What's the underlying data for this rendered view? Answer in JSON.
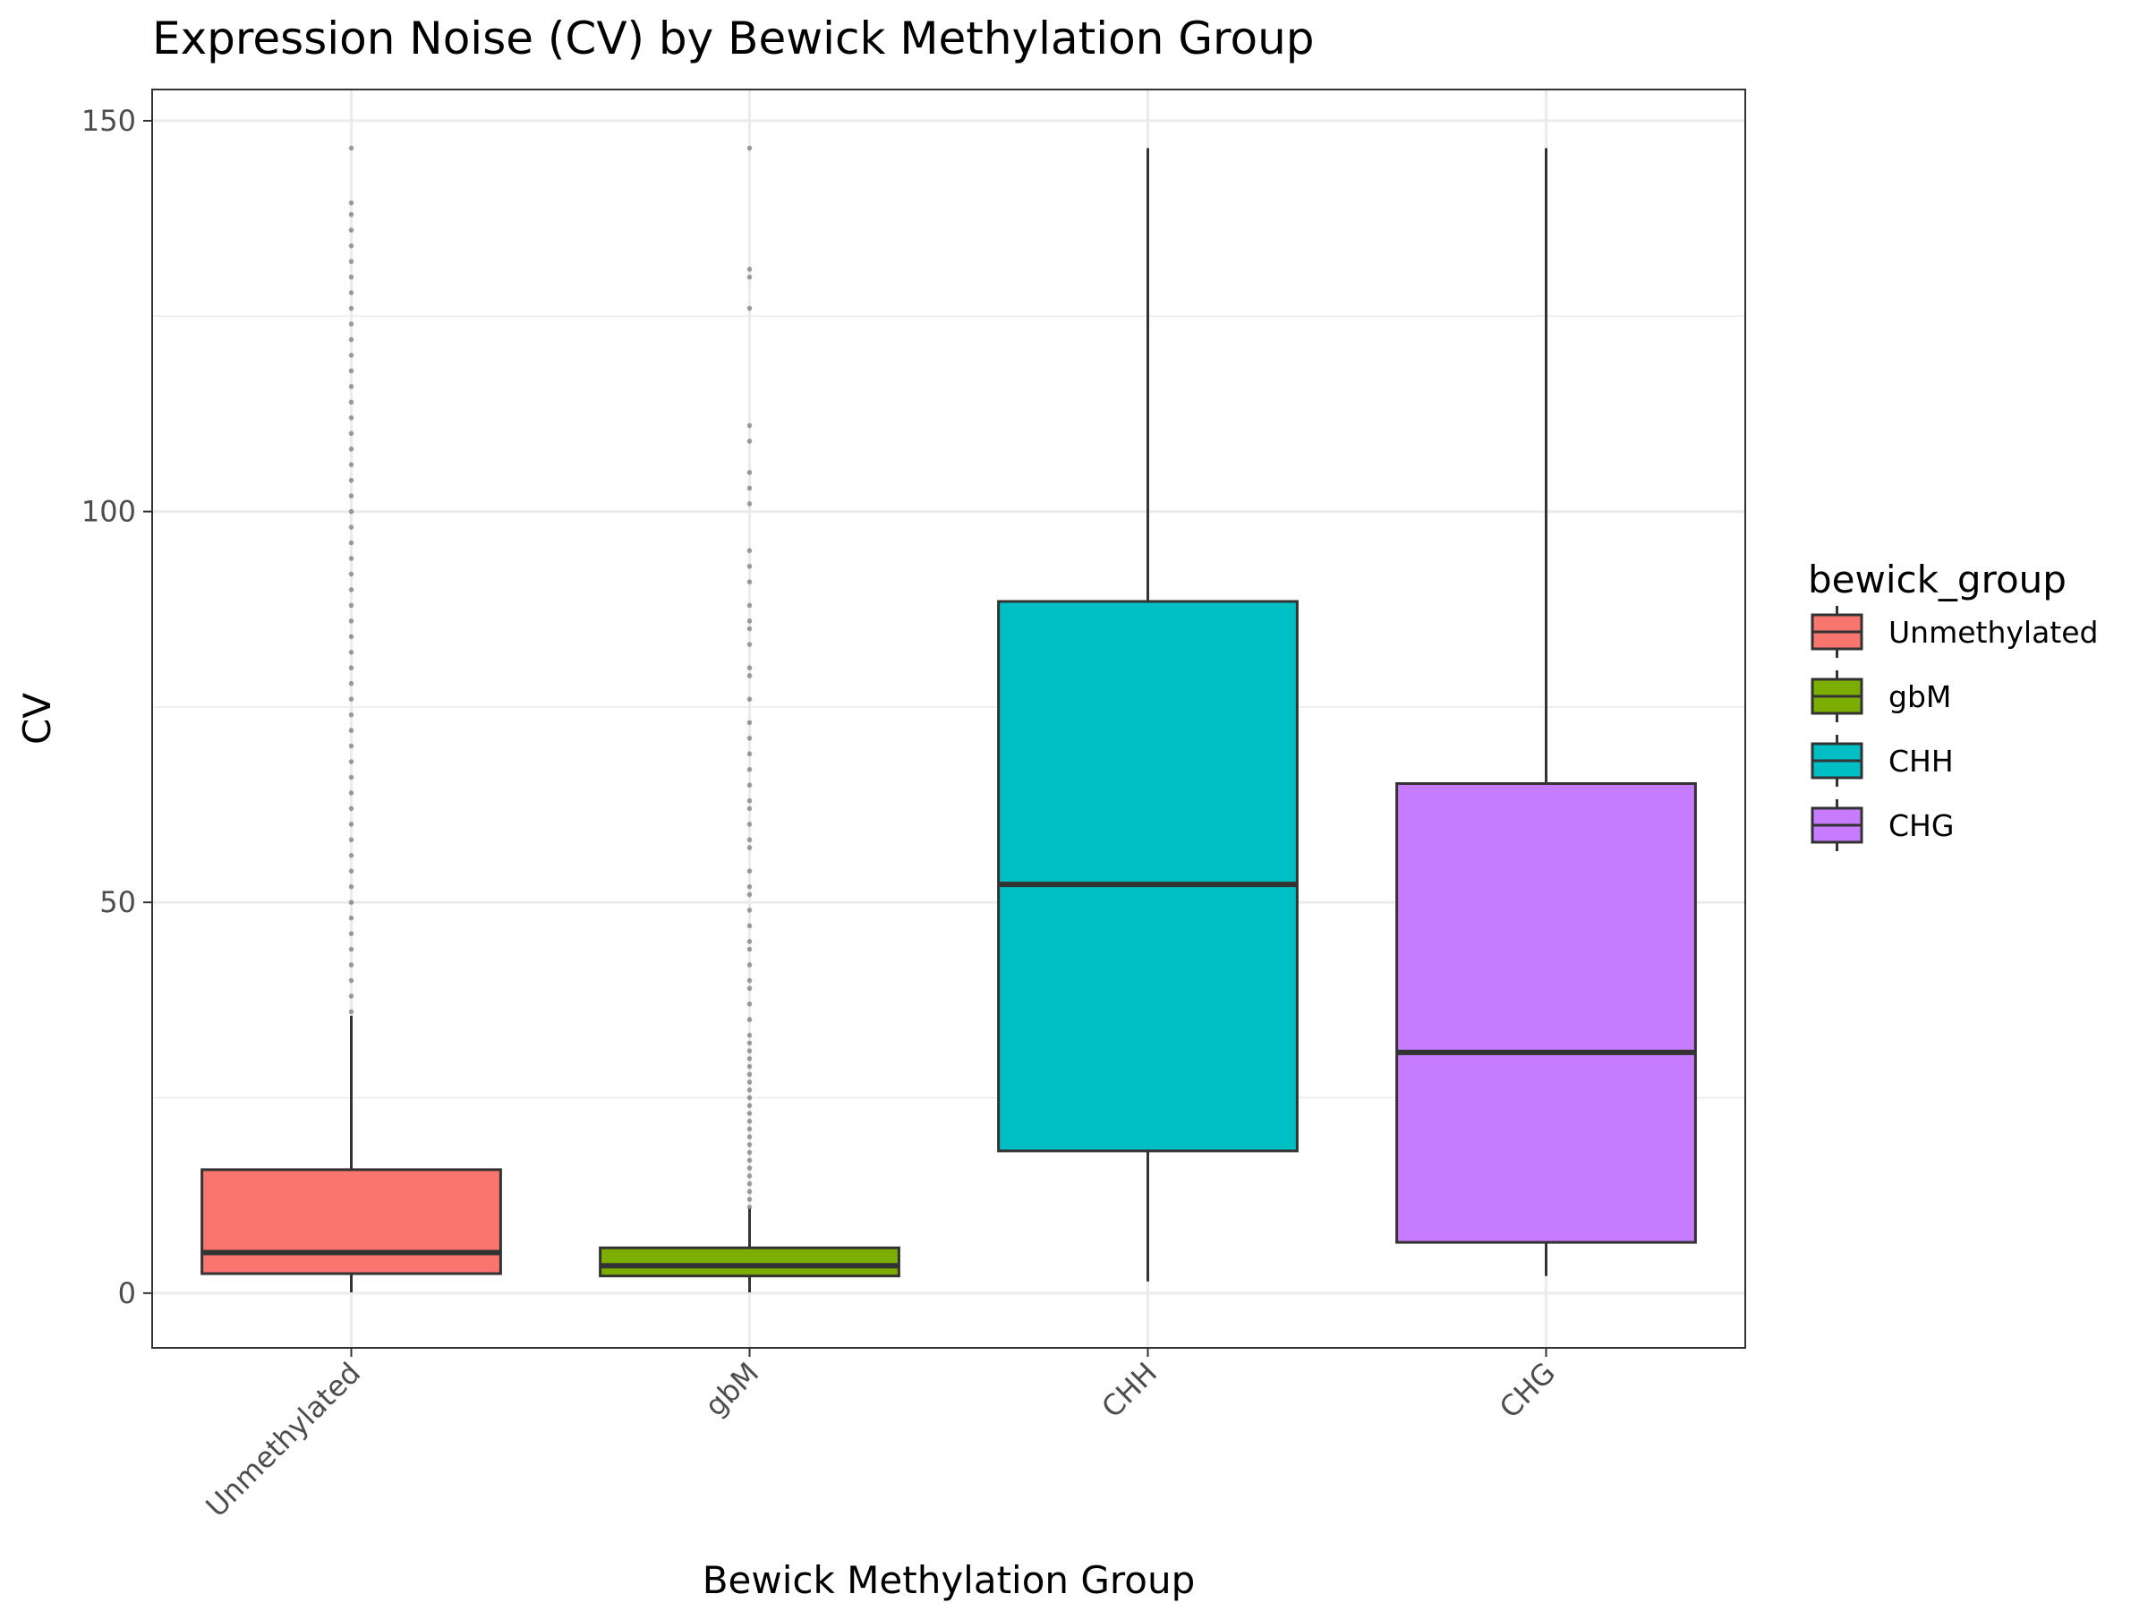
{
  "chart_data": {
    "type": "boxplot",
    "title": "Expression Noise (CV) by Bewick Methylation Group",
    "xlabel": "Bewick Methylation Group",
    "ylabel": "CV",
    "ylim": [
      -7,
      154
    ],
    "yticks": [
      0,
      50,
      100,
      150
    ],
    "grid": true,
    "legend": {
      "title": "bewick_group",
      "position": "right"
    },
    "categories": [
      "Unmethylated",
      "gbM",
      "CHH",
      "CHG"
    ],
    "colors": [
      "#F8766D",
      "#7CAE00",
      "#00BFC4",
      "#C77CFF"
    ],
    "boxes": [
      {
        "name": "Unmethylated",
        "whisker_low": 0.1,
        "q1": 2.5,
        "median": 5.2,
        "q3": 15.8,
        "whisker_high": 35.5,
        "outliers": [
          36,
          38,
          40,
          42,
          44,
          46,
          48,
          50,
          52,
          54,
          56,
          58,
          60,
          62,
          64,
          66,
          68,
          70,
          72,
          74,
          76,
          78,
          80,
          82,
          84,
          86,
          88,
          90,
          92,
          94,
          96,
          98,
          100,
          102,
          104,
          106,
          108,
          110,
          112,
          114,
          116,
          118,
          120,
          122,
          124,
          126,
          128,
          130,
          132,
          134,
          136,
          138,
          139.5,
          146.5
        ]
      },
      {
        "name": "gbM",
        "whisker_low": 0.1,
        "q1": 2.2,
        "median": 3.5,
        "q3": 5.8,
        "whisker_high": 10.8,
        "outliers": [
          11,
          12,
          13,
          14,
          15,
          16,
          17,
          18,
          19,
          20,
          21,
          22,
          23,
          24,
          25,
          26,
          27,
          28,
          29,
          30,
          31,
          32,
          33,
          35,
          37,
          39,
          40,
          42,
          44,
          45,
          47,
          49,
          51,
          52,
          54,
          57,
          58,
          60,
          62,
          63,
          65,
          67,
          69,
          71,
          73,
          76,
          79,
          80,
          83,
          85,
          86,
          88,
          91,
          93,
          95,
          101,
          103,
          105,
          109,
          111,
          126,
          130,
          131,
          146.5
        ]
      },
      {
        "name": "CHH",
        "whisker_low": 1.5,
        "q1": 18.2,
        "median": 52.3,
        "q3": 88.5,
        "whisker_high": 146.5,
        "outliers": []
      },
      {
        "name": "CHG",
        "whisker_low": 2.2,
        "q1": 6.5,
        "median": 30.8,
        "q3": 65.2,
        "whisker_high": 146.5,
        "outliers": []
      }
    ]
  }
}
